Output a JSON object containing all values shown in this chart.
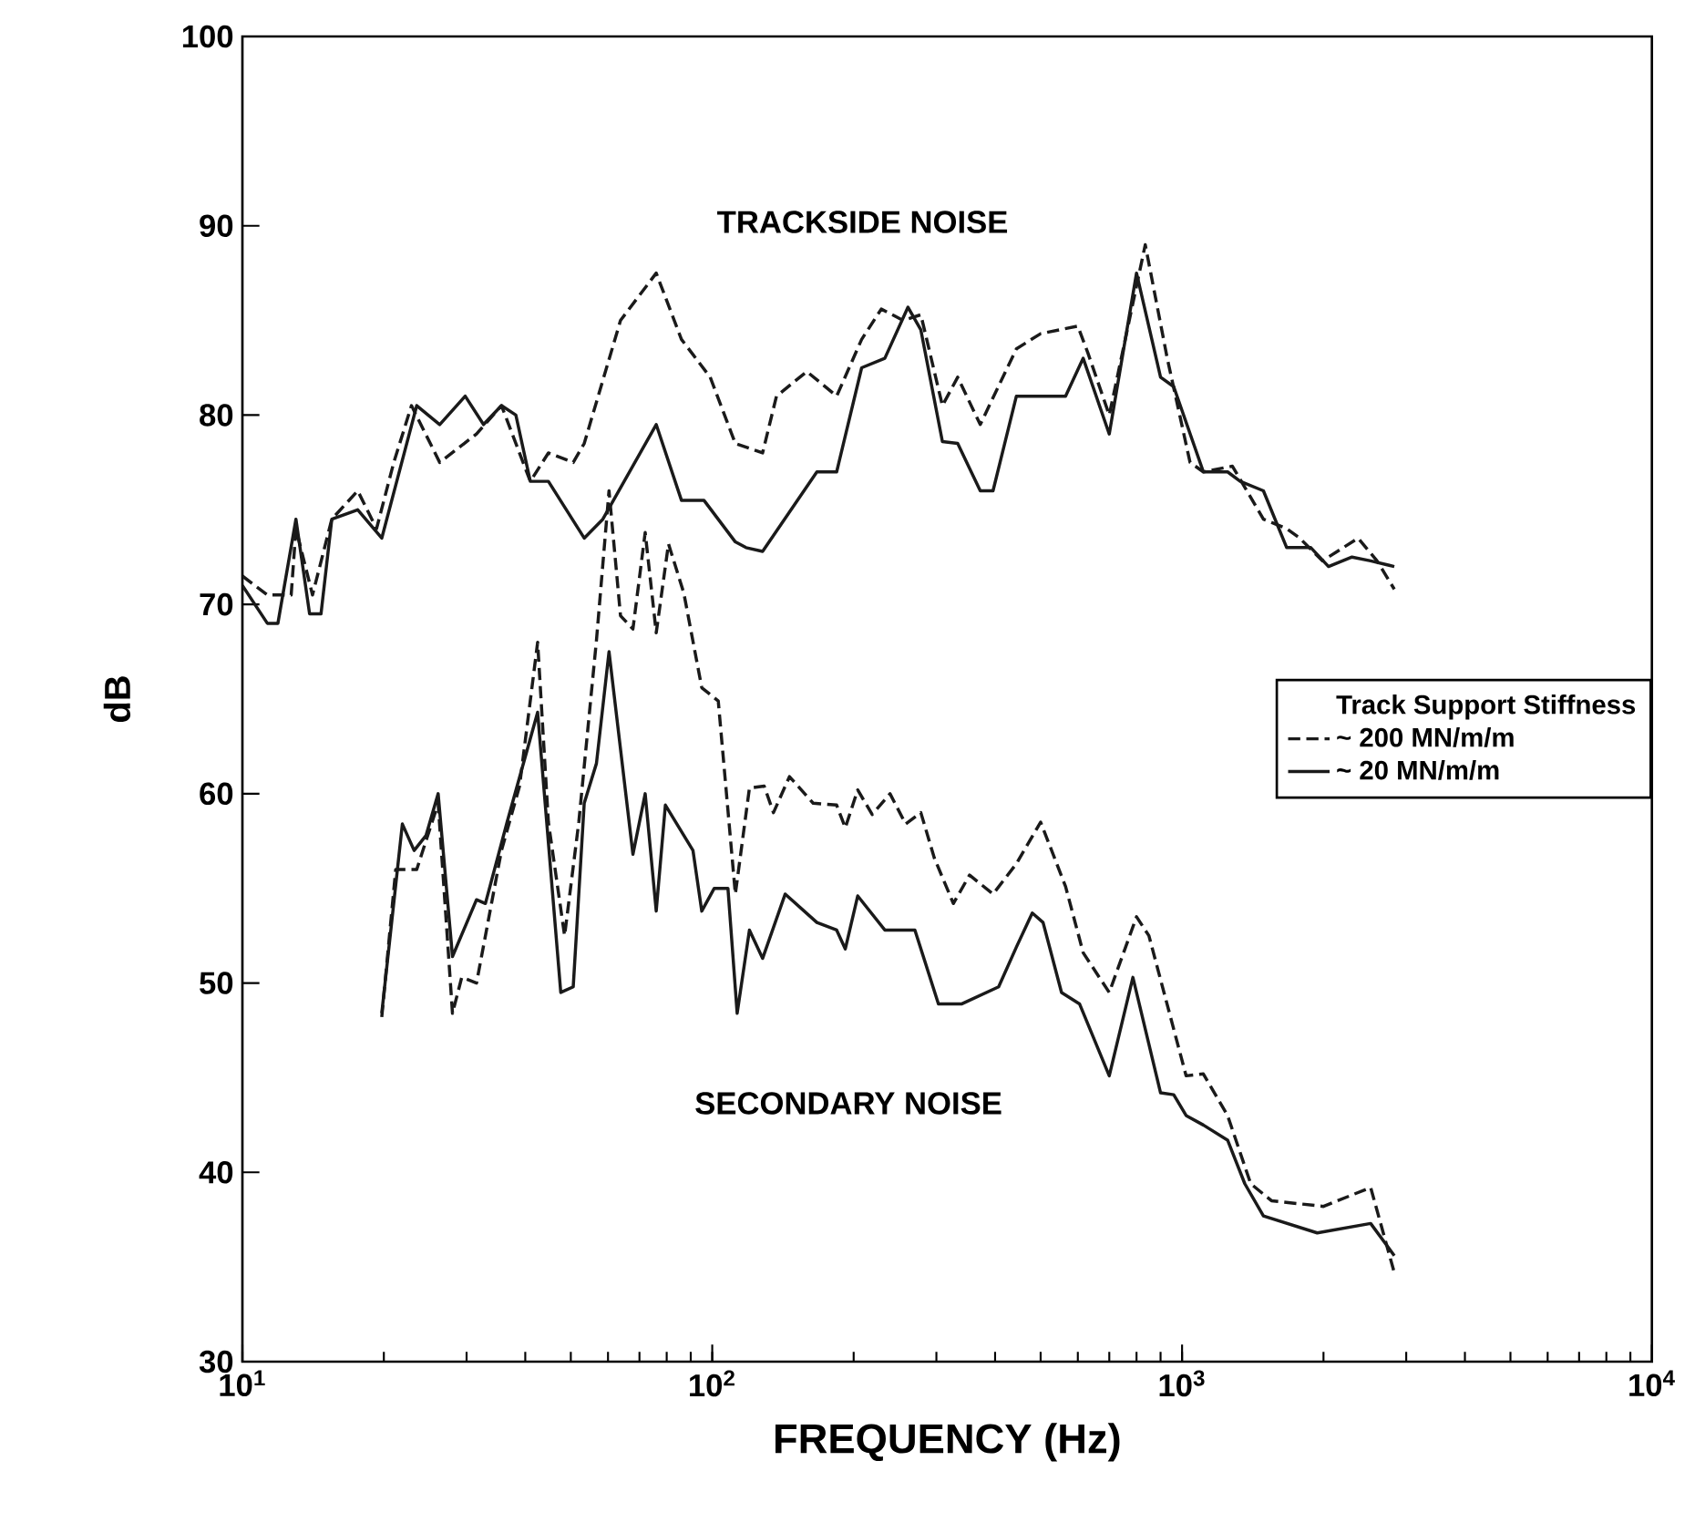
{
  "chart_data": {
    "type": "line",
    "xlabel": "FREQUENCY (Hz)",
    "ylabel": "dB",
    "legend_title": "Track Support Stiffness",
    "legend": "right",
    "log": "x",
    "marker": "none",
    "xlim": [
      10,
      10000
    ],
    "ylim": [
      30,
      100
    ],
    "xticks": [
      {
        "value": 10,
        "label": "10$^{1}$"
      },
      {
        "value": 100,
        "label": "10$^{2}$"
      },
      {
        "value": 1000,
        "label": "10$^{3}$"
      },
      {
        "value": 10000,
        "label": "10$^{4}$"
      }
    ],
    "yticks": [
      30,
      40,
      50,
      60,
      70,
      80,
      90,
      100
    ],
    "annotations": [
      "TRACKSIDE NOISE",
      "SECONDARY NOISE"
    ],
    "series": [
      {
        "name": "~ 200 MN/m/m",
        "color": "#1a1a1a",
        "line_style": "dashed",
        "x": [
          10,
          11.3,
          12.7,
          13,
          14.1,
          15.5,
          17.6,
          19.3,
          21,
          22.9,
          26.3,
          31.5,
          35.6,
          41,
          44.8,
          50.6,
          53.4,
          63.8,
          76,
          86,
          99,
          112,
          128,
          137,
          159,
          184,
          208,
          229,
          255,
          278,
          309,
          333,
          372,
          444,
          500,
          600,
          630,
          700,
          835,
          930,
          1040,
          1110,
          1280,
          1490,
          1670,
          1780,
          1990,
          2370,
          2600,
          2830
        ],
        "values": [
          71.5,
          70.5,
          70.5,
          74,
          70.5,
          74.5,
          76,
          74,
          77.5,
          80.5,
          77.5,
          79,
          80.5,
          76.5,
          78,
          77.5,
          78.5,
          85,
          87.5,
          84,
          82,
          78.5,
          78,
          81,
          82.3,
          81,
          84,
          85.6,
          85,
          85.3,
          80.5,
          82,
          79.5,
          83.5,
          84.3,
          84.7,
          83.3,
          80,
          89,
          83,
          77.5,
          77,
          77.3,
          74.5,
          74,
          73.5,
          72.3,
          73.5,
          72.3,
          70.8
        ]
      },
      {
        "name": "~ 20 MN/m/m",
        "color": "#1a1a1a",
        "line_style": "solid",
        "x": [
          10,
          11.3,
          11.9,
          13,
          13.9,
          14.7,
          15.5,
          17.6,
          19.8,
          23.5,
          26.3,
          29.8,
          32.6,
          35.6,
          38.2,
          41,
          44.8,
          53.4,
          58.5,
          76,
          86,
          96,
          112,
          118,
          128,
          167,
          184,
          208,
          233,
          261,
          278,
          309,
          333,
          372,
          396,
          444,
          500,
          565,
          616,
          700,
          800,
          900,
          960,
          1110,
          1250,
          1330,
          1490,
          1670,
          1880,
          2050,
          2300,
          2520,
          2830
        ],
        "values": [
          71,
          69,
          69,
          74.5,
          69.5,
          69.5,
          74.5,
          75,
          73.5,
          80.5,
          79.5,
          81,
          79.5,
          80.5,
          80,
          76.5,
          76.5,
          73.5,
          74.5,
          79.5,
          75.5,
          75.5,
          73.3,
          73,
          72.8,
          77,
          77,
          82.5,
          83,
          85.7,
          84.5,
          78.6,
          78.5,
          76,
          76,
          81,
          81,
          81,
          83,
          79,
          87.5,
          82,
          81.5,
          77,
          77,
          76.5,
          76,
          73,
          73,
          72,
          72.5,
          72.3,
          72
        ]
      },
      {
        "color": "#1a1a1a",
        "line_style": "dashed",
        "x": [
          19.8,
          21.2,
          23.5,
          26.1,
          28,
          29.3,
          31.5,
          35.6,
          38.9,
          42.5,
          44.8,
          48.5,
          52,
          56.7,
          60.3,
          63.8,
          67.8,
          72,
          76,
          80.7,
          87,
          95,
          103,
          112,
          120,
          129,
          135,
          146,
          164,
          184,
          192,
          204,
          219,
          239,
          258,
          278,
          297,
          326,
          353,
          396,
          444,
          500,
          565,
          616,
          700,
          800,
          850,
          1020,
          1110,
          1250,
          1400,
          1550,
          2000,
          2520,
          2830
        ],
        "values": [
          48.2,
          56,
          56,
          59.5,
          48.4,
          50.3,
          50,
          57,
          60.4,
          68,
          58.5,
          52.5,
          58.5,
          68.1,
          76,
          69.4,
          68.7,
          73.8,
          68.5,
          73.2,
          70.6,
          65.6,
          64.9,
          54.7,
          60.3,
          60.4,
          59,
          60.9,
          59.5,
          59.4,
          58.2,
          60.2,
          58.9,
          60,
          58.4,
          59,
          56.6,
          54.2,
          55.7,
          54.7,
          56.3,
          58.5,
          55.1,
          51.6,
          49.5,
          53.5,
          52.5,
          45.1,
          45.2,
          43,
          39.4,
          38.5,
          38.2,
          39.2,
          34.7
        ]
      },
      {
        "color": "#1a1a1a",
        "line_style": "solid",
        "x": [
          19.8,
          21.9,
          23.2,
          24.6,
          26.1,
          28,
          31.5,
          32.9,
          36.6,
          42.5,
          47.6,
          50.6,
          53.4,
          56.7,
          60.3,
          67.8,
          72,
          76,
          79.5,
          91,
          95,
          101,
          108,
          113,
          120,
          128,
          143,
          167,
          184,
          192,
          204,
          233,
          270,
          303,
          340,
          407,
          444,
          480,
          506,
          554,
          605,
          700,
          786,
          900,
          960,
          1020,
          1110,
          1250,
          1360,
          1490,
          1940,
          2520,
          2830
        ],
        "values": [
          48.4,
          58.4,
          57,
          57.8,
          60,
          51.4,
          54.4,
          54.2,
          58.5,
          64.3,
          49.5,
          49.8,
          59.5,
          61.6,
          67.5,
          56.8,
          60,
          53.8,
          59.4,
          57,
          53.8,
          55,
          55,
          48.4,
          52.8,
          51.3,
          54.7,
          53.2,
          52.8,
          51.8,
          54.6,
          52.8,
          52.8,
          48.9,
          48.9,
          49.8,
          51.9,
          53.7,
          53.2,
          49.5,
          48.9,
          45.1,
          50.3,
          44.2,
          44.1,
          43,
          42.5,
          41.7,
          39.4,
          37.7,
          36.8,
          37.3,
          35.6
        ]
      }
    ]
  }
}
